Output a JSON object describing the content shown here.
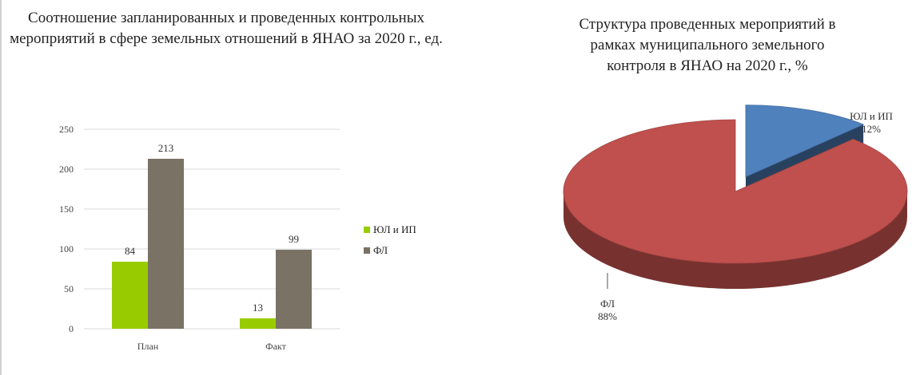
{
  "chart_data": [
    {
      "type": "bar",
      "title": "Соотношение запланированных и проведенных контрольных мероприятий в сфере земельных отношений в ЯНАО за 2020 г., ед.",
      "categories": [
        "План",
        "Факт"
      ],
      "series": [
        {
          "name": "ЮЛ и ИП",
          "values": [
            84,
            13
          ],
          "color": "#99cc00"
        },
        {
          "name": "ФЛ",
          "values": [
            213,
            99
          ],
          "color": "#7a7265"
        }
      ],
      "y_ticks": [
        "0",
        "50",
        "100",
        "150",
        "200",
        "250"
      ],
      "ylim": [
        0,
        250
      ],
      "grid": true,
      "legend": "right"
    },
    {
      "type": "pie",
      "title": "Структура проведенных мероприятий в рамках муниципального земельного контроля в ЯНАО на 2020 г., %",
      "slices": [
        {
          "name": "ЮЛ и ИП",
          "value": 12,
          "label": "12%",
          "color": "#4f81bd"
        },
        {
          "name": "ФЛ",
          "value": 88,
          "label": "88%",
          "color": "#c0504d"
        }
      ],
      "exploded": "ЮЛ и ИП",
      "style": "3d"
    }
  ]
}
